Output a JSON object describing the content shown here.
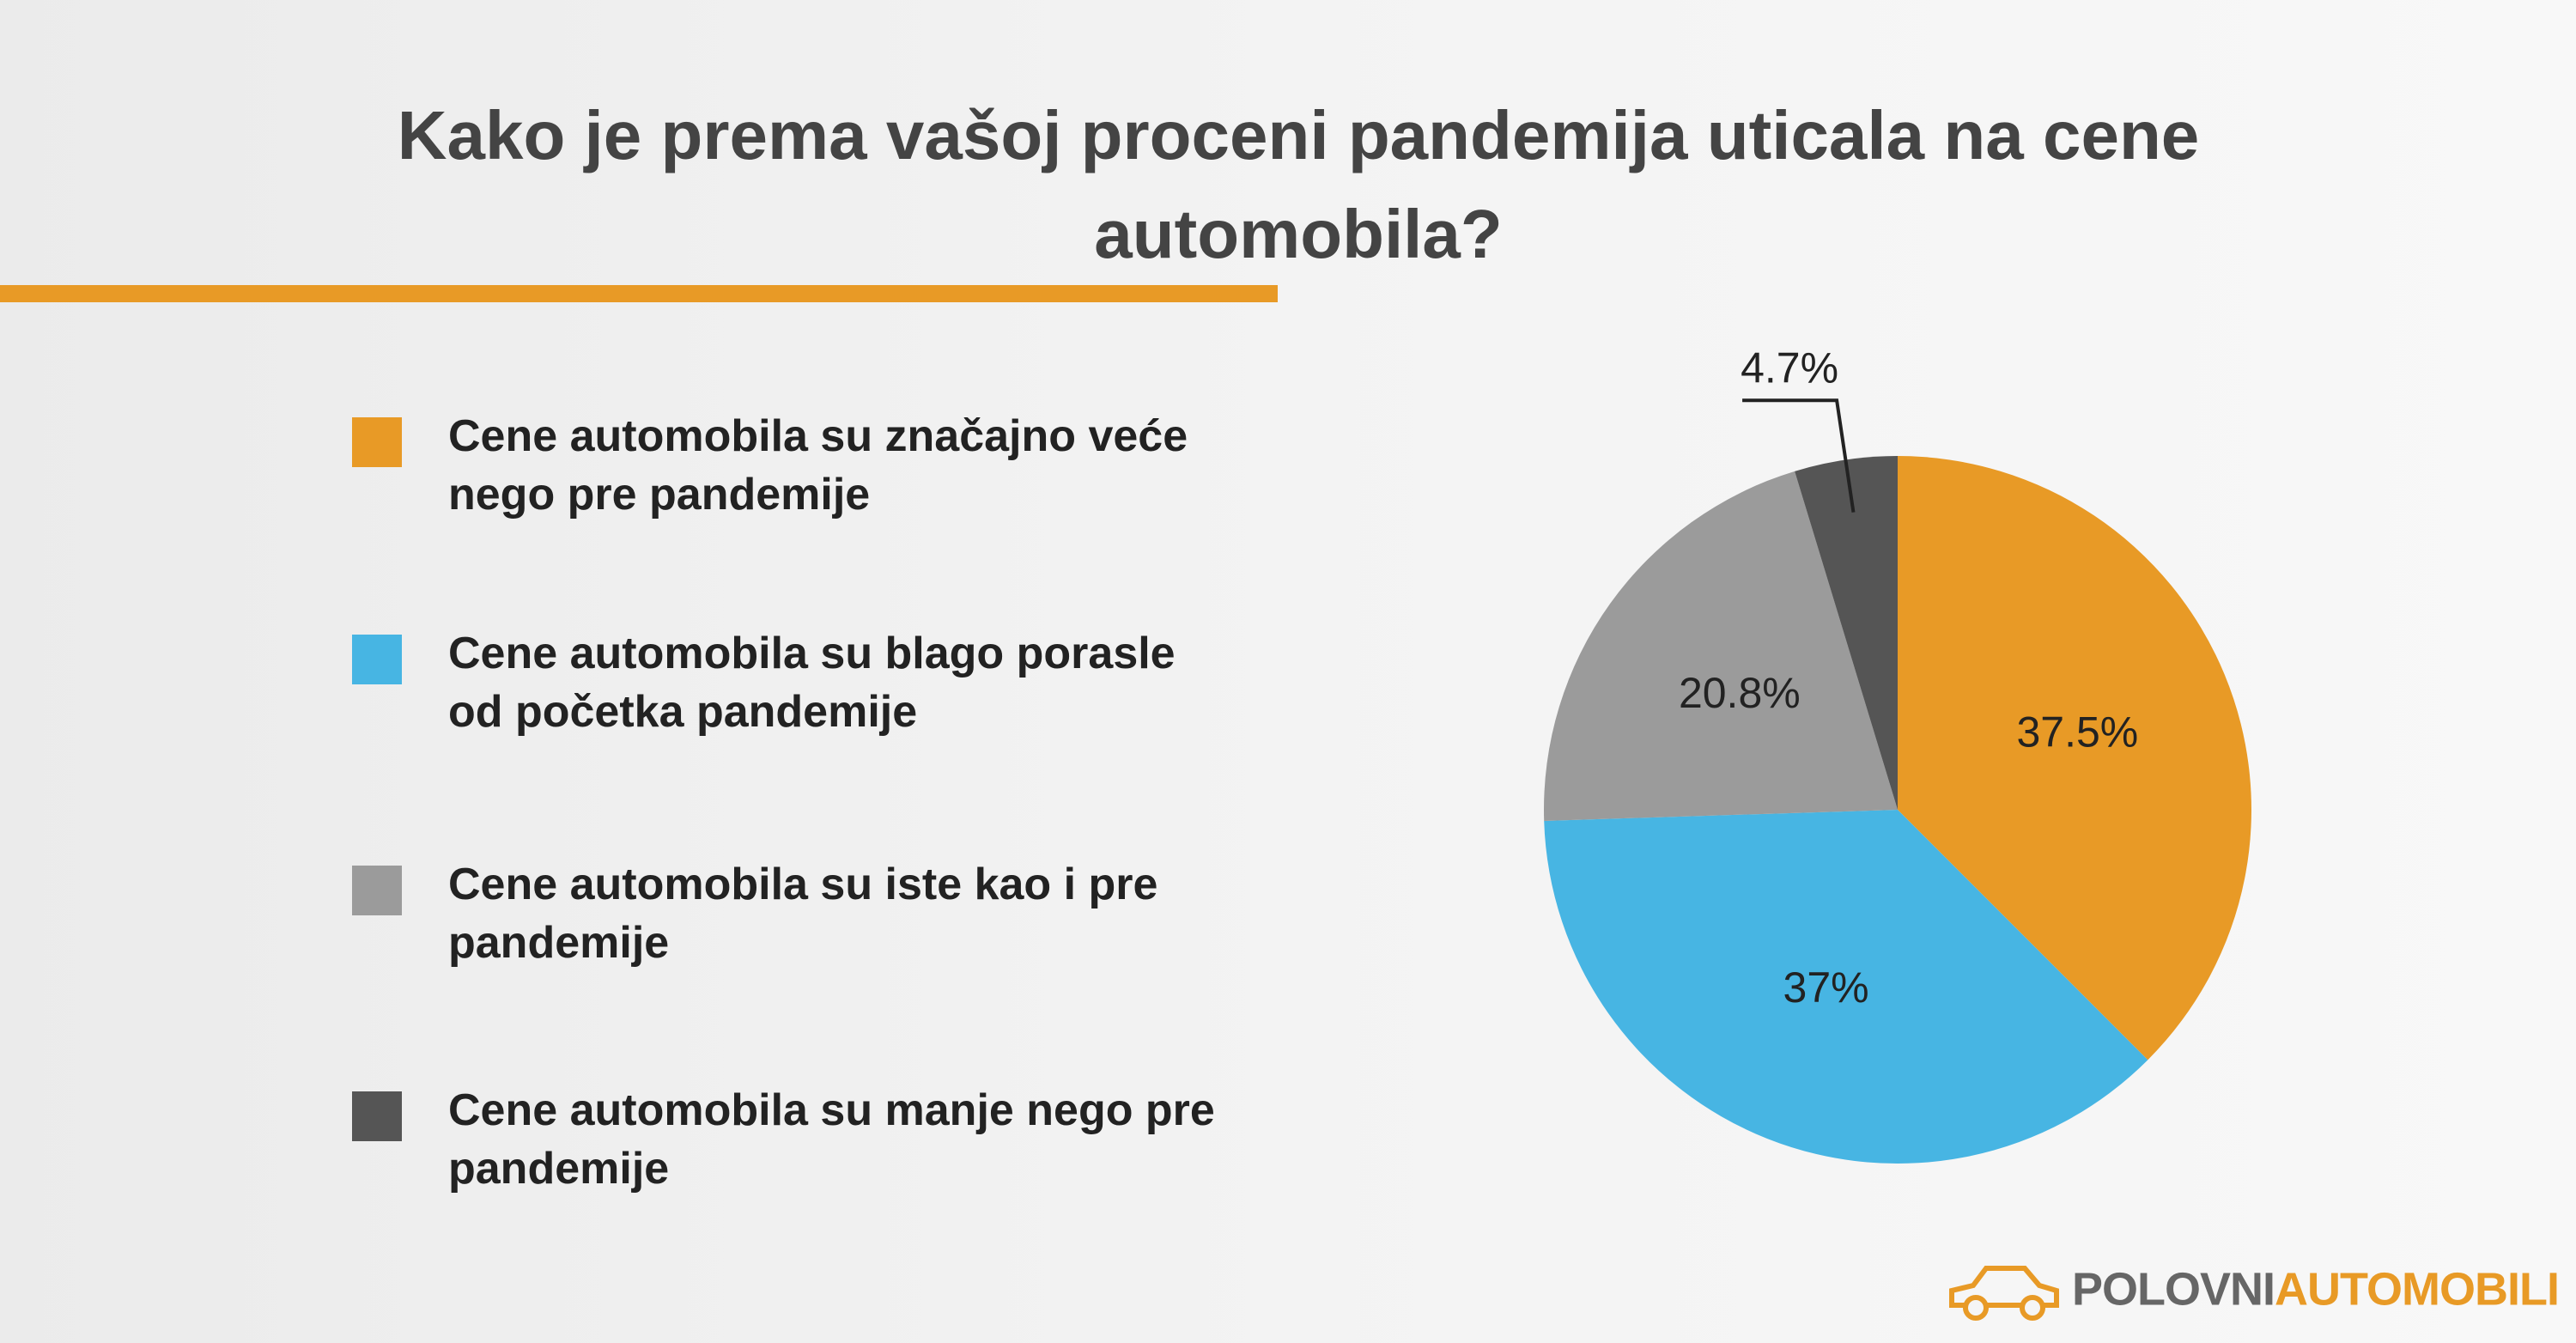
{
  "chart_data": {
    "type": "pie",
    "title": "Kako je prema vašoj proceni pandemija uticala na cene automobila?",
    "categories": [
      "Cene automobila su značajno veće nego pre pandemije",
      "Cene automobila su blago porasle od početka pandemije",
      "Cene automobila su iste kao i pre pandemije",
      "Cene automobila su manje nego pre pandemije"
    ],
    "values": [
      37.5,
      37,
      20.8,
      4.7
    ],
    "value_labels": [
      "37.5%",
      "37%",
      "20.8%",
      "4.7%"
    ],
    "colors": [
      "#E89A26",
      "#47B5E3",
      "#9B9B9B",
      "#555555"
    ],
    "legend": "left"
  },
  "logo": {
    "first": "POLOVNI",
    "second": "AUTOMOBILI"
  }
}
